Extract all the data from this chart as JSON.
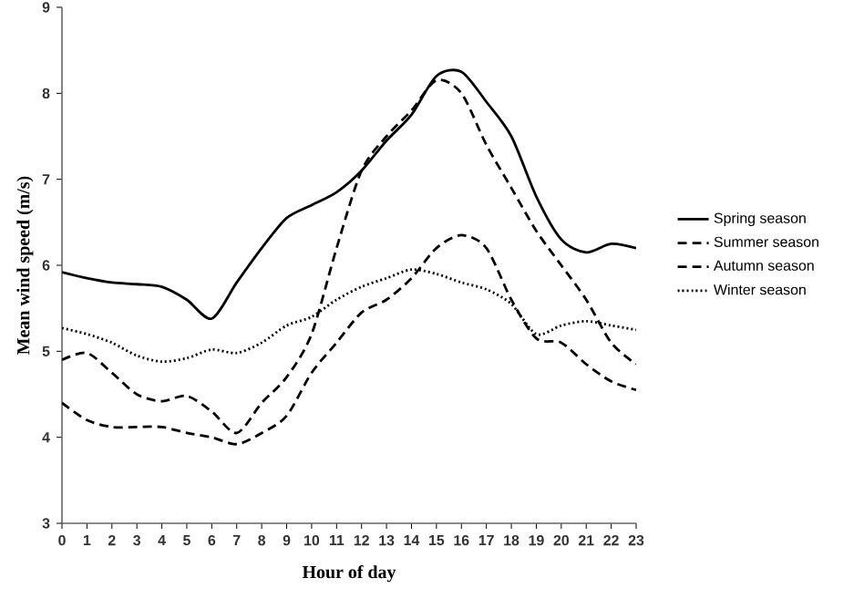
{
  "chart_data": {
    "type": "line",
    "xlabel": "Hour of day",
    "ylabel": "Mean wind speed (m/s)",
    "x": [
      0,
      1,
      2,
      3,
      4,
      5,
      6,
      7,
      8,
      9,
      10,
      11,
      12,
      13,
      14,
      15,
      16,
      17,
      18,
      19,
      20,
      21,
      22,
      23
    ],
    "xlim": [
      0,
      23
    ],
    "ylim": [
      3,
      9
    ],
    "xticks": [
      0,
      1,
      2,
      3,
      4,
      5,
      6,
      7,
      8,
      9,
      10,
      11,
      12,
      13,
      14,
      15,
      16,
      17,
      18,
      19,
      20,
      21,
      22,
      23
    ],
    "yticks": [
      3,
      4,
      5,
      6,
      7,
      8,
      9
    ],
    "grid": false,
    "legend": "right",
    "marker": "none",
    "series": [
      {
        "name": "Spring season",
        "color": "#000000",
        "line_style": "solid",
        "values": [
          5.92,
          5.85,
          5.8,
          5.78,
          5.75,
          5.6,
          5.38,
          5.8,
          6.2,
          6.55,
          6.7,
          6.85,
          7.1,
          7.45,
          7.75,
          8.2,
          8.25,
          7.9,
          7.5,
          6.8,
          6.3,
          6.15,
          6.25,
          6.2
        ]
      },
      {
        "name": "Summer season",
        "color": "#000000",
        "line_style": "dashed",
        "values": [
          4.9,
          4.98,
          4.75,
          4.5,
          4.42,
          4.48,
          4.3,
          4.05,
          4.4,
          4.7,
          5.2,
          6.2,
          7.1,
          7.5,
          7.8,
          8.15,
          8.0,
          7.4,
          6.9,
          6.4,
          6.0,
          5.6,
          5.1,
          4.85
        ]
      },
      {
        "name": "Autumn season",
        "color": "#000000",
        "line_style": "dashed",
        "values": [
          4.4,
          4.2,
          4.12,
          4.12,
          4.12,
          4.05,
          4.0,
          3.92,
          4.05,
          4.25,
          4.75,
          5.1,
          5.45,
          5.6,
          5.85,
          6.2,
          6.35,
          6.2,
          5.6,
          5.15,
          5.1,
          4.85,
          4.65,
          4.55
        ]
      },
      {
        "name": "Winter season",
        "color": "#000000",
        "line_style": "dotted",
        "values": [
          5.27,
          5.2,
          5.1,
          4.95,
          4.88,
          4.92,
          5.02,
          4.98,
          5.1,
          5.3,
          5.4,
          5.6,
          5.75,
          5.85,
          5.95,
          5.9,
          5.8,
          5.72,
          5.55,
          5.2,
          5.3,
          5.35,
          5.3,
          5.25
        ]
      }
    ]
  }
}
